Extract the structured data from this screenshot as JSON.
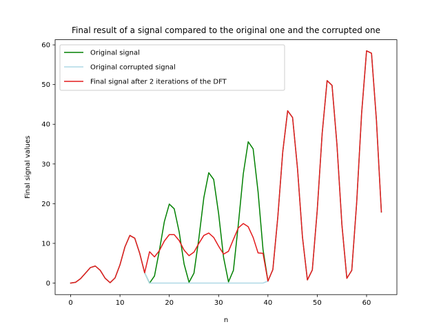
{
  "chart_data": {
    "type": "line",
    "title": "Final result of a signal compared to the original one and the corrupted one",
    "xlabel": "n",
    "ylabel": "Final signal values",
    "xlim": [
      -3.15,
      66.15
    ],
    "ylim": [
      -2.9,
      61.3
    ],
    "xticks": [
      0,
      10,
      20,
      30,
      40,
      50,
      60
    ],
    "yticks": [
      0,
      10,
      20,
      30,
      40,
      50,
      60
    ],
    "grid": false,
    "legend_position": "top-left",
    "series": [
      {
        "name": "Original signal",
        "color": "#008000",
        "x": [
          0,
          1,
          2,
          3,
          4,
          5,
          6,
          7,
          8,
          9,
          10,
          11,
          12,
          13,
          14,
          15,
          16,
          17,
          18,
          19,
          20,
          21,
          22,
          23,
          24,
          25,
          26,
          27,
          28,
          29,
          30,
          31,
          32,
          33,
          34,
          35,
          36,
          37,
          38,
          39,
          40,
          41,
          42,
          43,
          44,
          45,
          46,
          47,
          48,
          49,
          50,
          51,
          52,
          53,
          54,
          55,
          56,
          57,
          58,
          59,
          60,
          61,
          62,
          63
        ],
        "y": [
          0,
          0.2,
          1.1,
          2.5,
          3.9,
          4.3,
          3.2,
          1.2,
          0.1,
          1.3,
          4.6,
          9.1,
          12.0,
          11.3,
          7.5,
          2.6,
          0.0,
          1.8,
          8.3,
          15.5,
          19.9,
          18.7,
          12.9,
          4.8,
          0.2,
          2.5,
          11.3,
          21.5,
          27.8,
          26.1,
          17.5,
          6.5,
          0.3,
          3.2,
          14.8,
          27.5,
          35.6,
          33.8,
          23.0,
          8.5,
          0.5,
          3.4,
          16.6,
          33.0,
          43.4,
          41.7,
          28.8,
          11.6,
          0.8,
          3.3,
          18.4,
          37.7,
          51.0,
          49.8,
          34.8,
          14.7,
          1.2,
          3.2,
          20.4,
          42.8,
          58.5,
          57.9,
          41.0,
          17.9
        ]
      },
      {
        "name": "Original corrupted signal",
        "color": "#add8e6",
        "x": [
          0,
          1,
          2,
          3,
          4,
          5,
          6,
          7,
          8,
          9,
          10,
          11,
          12,
          13,
          14,
          15,
          16,
          17,
          18,
          19,
          20,
          21,
          22,
          23,
          24,
          25,
          26,
          27,
          28,
          29,
          30,
          31,
          32,
          33,
          34,
          35,
          36,
          37,
          38,
          39,
          40,
          41,
          42,
          43,
          44,
          45,
          46,
          47,
          48,
          49,
          50,
          51,
          52,
          53,
          54,
          55,
          56,
          57,
          58,
          59,
          60,
          61,
          62,
          63
        ],
        "y": [
          0,
          0.2,
          1.1,
          2.5,
          3.9,
          4.3,
          3.2,
          1.2,
          0.1,
          1.3,
          4.6,
          9.1,
          12.0,
          11.3,
          7.5,
          2.6,
          0,
          0,
          0,
          0,
          0,
          0,
          0,
          0,
          0,
          0,
          0,
          0,
          0,
          0,
          0,
          0,
          0,
          0,
          0,
          0,
          0,
          0,
          0,
          0,
          0.5,
          3.4,
          16.6,
          33.0,
          43.4,
          41.7,
          28.8,
          11.6,
          0.8,
          3.3,
          18.4,
          37.7,
          51.0,
          49.8,
          34.8,
          14.7,
          1.2,
          3.2,
          20.4,
          42.8,
          58.5,
          57.9,
          41.0,
          17.9
        ]
      },
      {
        "name": "Final signal after 2 iterations of the DFT",
        "color": "#e31a1c",
        "x": [
          0,
          1,
          2,
          3,
          4,
          5,
          6,
          7,
          8,
          9,
          10,
          11,
          12,
          13,
          14,
          15,
          16,
          17,
          18,
          19,
          20,
          21,
          22,
          23,
          24,
          25,
          26,
          27,
          28,
          29,
          30,
          31,
          32,
          33,
          34,
          35,
          36,
          37,
          38,
          39,
          40,
          41,
          42,
          43,
          44,
          45,
          46,
          47,
          48,
          49,
          50,
          51,
          52,
          53,
          54,
          55,
          56,
          57,
          58,
          59,
          60,
          61,
          62,
          63
        ],
        "y": [
          0,
          0.2,
          1.1,
          2.5,
          3.9,
          4.3,
          3.2,
          1.2,
          0.1,
          1.3,
          4.6,
          9.1,
          12.0,
          11.3,
          7.5,
          2.6,
          7.9,
          6.6,
          8.2,
          10.6,
          12.2,
          12.2,
          10.7,
          8.3,
          6.9,
          7.8,
          10.0,
          12.0,
          12.6,
          11.5,
          9.3,
          7.3,
          8.0,
          11.0,
          13.9,
          15.0,
          14.2,
          11.5,
          7.6,
          7.5,
          0.5,
          3.4,
          16.6,
          33.0,
          43.4,
          41.7,
          28.8,
          11.6,
          0.8,
          3.3,
          18.4,
          37.7,
          51.0,
          49.8,
          34.8,
          14.7,
          1.2,
          3.2,
          20.4,
          42.8,
          58.5,
          57.9,
          41.0,
          17.9
        ]
      }
    ]
  }
}
